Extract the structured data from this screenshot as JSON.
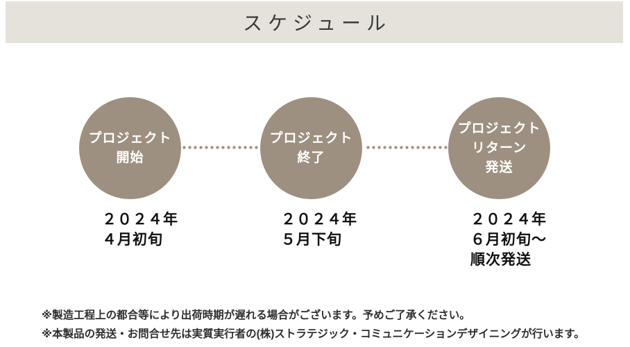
{
  "header": {
    "title": "スケジュール"
  },
  "timeline": {
    "steps": [
      {
        "label": "プロジェクト\n開始",
        "date": "２０２４年\n４月初旬"
      },
      {
        "label": "プロジェクト\n終了",
        "date": "２０２４年\n５月下旬"
      },
      {
        "label": "プロジェクト\nリターン\n発送",
        "date": "２０２４年\n６月初旬～\n順次発送"
      }
    ],
    "connector_style": "dotted"
  },
  "notes": [
    "※製造工程上の都合等により出荷時期が遅れる場合がございます。予めご了承ください。",
    "※本製品の発送・お問合せ先は実質実行者の(株)ストラテジック・コミュニケーションデザイニングが行います。"
  ],
  "colors": {
    "banner-bg": "#e5e2dc",
    "circle": "#9e9080",
    "title-color": "#3b3a39",
    "date-color": "#111111",
    "note-color": "#2e2e2e"
  }
}
